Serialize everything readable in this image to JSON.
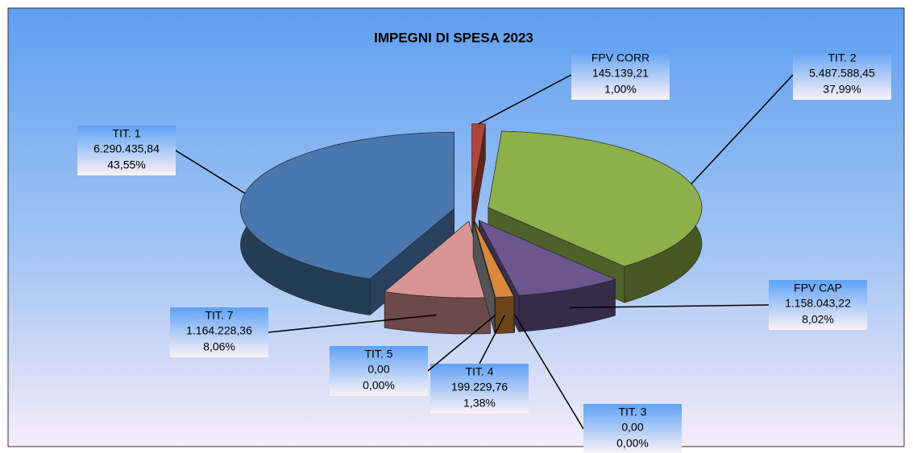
{
  "chart_data": {
    "type": "pie3d",
    "title": "IMPEGNI DI SPESA 2023",
    "categories": [
      "FPV CORR",
      "TIT. 2",
      "FPV CAP",
      "TIT. 3",
      "TIT. 4",
      "TIT. 5",
      "TIT. 7",
      "TIT. 1"
    ],
    "values": [
      1.0,
      37.99,
      8.02,
      0,
      1.38,
      0,
      8.06,
      43.55
    ],
    "value_labels": [
      "1,00%",
      "37,99%",
      "8,02%",
      "0,00%",
      "1,38%",
      "0,00%",
      "8,06%",
      "43,55%"
    ],
    "amounts": [
      145139.21,
      5487588.45,
      1158043.22,
      0,
      199229.76,
      0,
      1164228.36,
      6290435.84
    ],
    "amount_labels": [
      "145.139,21",
      "5.487.588,45",
      "1.158.043,22",
      "0,00",
      "199.229,76",
      "0,00",
      "1.164.228,36",
      "6.290.435,84"
    ],
    "colors": [
      "#b0463a",
      "#8db04a",
      "#6b5690",
      "#999999",
      "#d8893a",
      "#999999",
      "#d99494",
      "#4a77ad"
    ]
  }
}
